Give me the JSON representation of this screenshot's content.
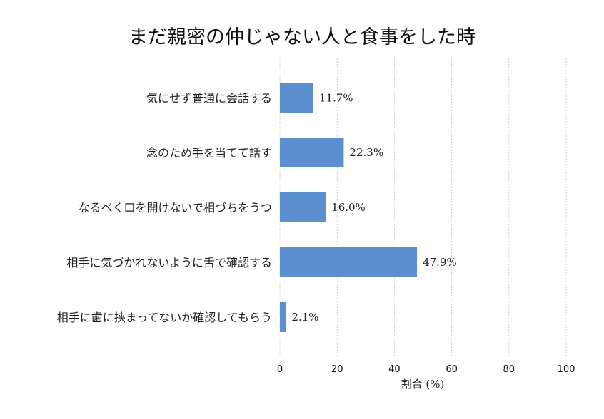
{
  "chart_data": {
    "type": "bar",
    "orientation": "horizontal",
    "title": "まだ親密の仲じゃない人と食事をした時",
    "xlabel": "割合 (%)",
    "ylabel": "",
    "xlim": [
      0,
      100
    ],
    "xticks": [
      0,
      20,
      40,
      60,
      80,
      100
    ],
    "grid": "vertical-dashed",
    "bar_color": "#5b8fd0",
    "categories": [
      "気にせず普通に会話する",
      "念のため手を当てて話す",
      "なるべく口を開けないで相づちをうつ",
      "相手に気づかれないように舌で確認する",
      "相手に歯に挟まってないか確認してもらう"
    ],
    "values": [
      11.7,
      22.3,
      16.0,
      47.9,
      2.1
    ],
    "data_labels": [
      "11.7%",
      "22.3%",
      "16.0%",
      "47.9%",
      "2.1%"
    ]
  }
}
